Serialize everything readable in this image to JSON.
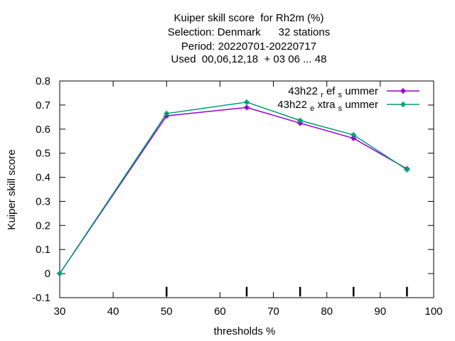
{
  "chart_data": {
    "type": "line",
    "title_lines": [
      "Kuiper skill score  for Rh2m (%)",
      "Selection: Denmark      32 stations",
      "Period: 20220701-20220717",
      "Used  00,06,12,18  + 03 06 ... 48"
    ],
    "xlabel": "thresholds %",
    "ylabel": "Kuiper skill score",
    "xlim": [
      30,
      100
    ],
    "ylim": [
      -0.1,
      0.8
    ],
    "xticks": [
      30,
      40,
      50,
      60,
      70,
      80,
      90,
      100
    ],
    "yticks": [
      -0.1,
      0,
      0.1,
      0.2,
      0.3,
      0.4,
      0.5,
      0.6,
      0.7,
      0.8
    ],
    "threshold_markers": [
      50,
      65,
      75,
      85,
      95
    ],
    "grid": false,
    "legend_position": "top-right",
    "series": [
      {
        "name_main": "43h22",
        "name_sub1": "r",
        "name_mid": "ef",
        "name_sub2": "s",
        "name_end": "ummer",
        "color": "#9400d3",
        "x": [
          30,
          50,
          65,
          75,
          85,
          95
        ],
        "y": [
          0.0,
          0.655,
          0.69,
          0.625,
          0.562,
          0.435
        ]
      },
      {
        "name_main": "43h22",
        "name_sub1": "e",
        "name_mid": "xtra",
        "name_sub2": "s",
        "name_end": "ummer",
        "color": "#009e73",
        "x": [
          30,
          50,
          65,
          75,
          85,
          95
        ],
        "y": [
          0.0,
          0.665,
          0.712,
          0.636,
          0.576,
          0.432
        ]
      }
    ]
  }
}
